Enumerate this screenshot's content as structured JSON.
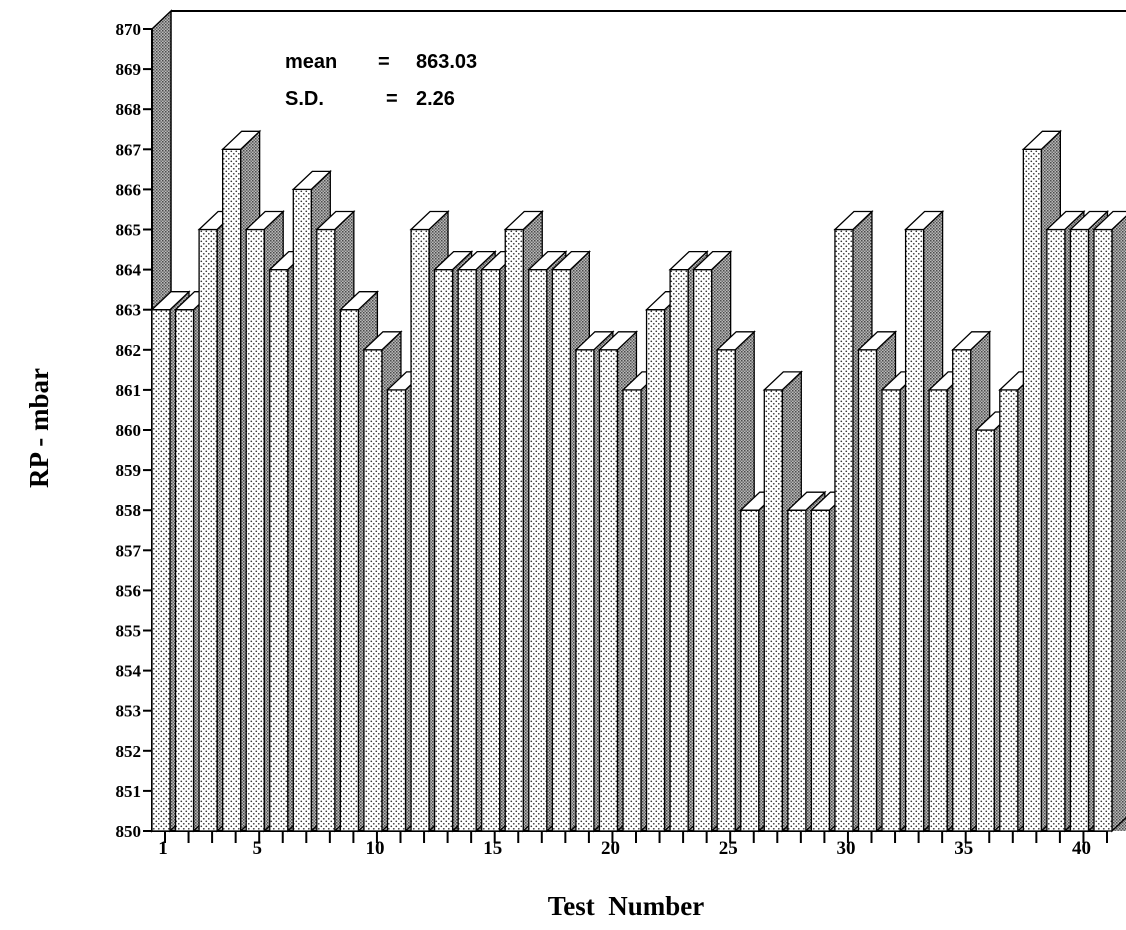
{
  "chart_data": {
    "type": "bar",
    "style": "3d",
    "title": "",
    "xlabel": "Test  Number",
    "ylabel": "RP - mbar",
    "ylim": [
      850,
      870
    ],
    "y_ticks": [
      850,
      851,
      852,
      853,
      854,
      855,
      856,
      857,
      858,
      859,
      860,
      861,
      862,
      863,
      864,
      865,
      866,
      867,
      868,
      869,
      870
    ],
    "x_tick_labels": [
      {
        "test": 1,
        "label": "1"
      },
      {
        "test": 5,
        "label": "5"
      },
      {
        "test": 10,
        "label": "10"
      },
      {
        "test": 15,
        "label": "15"
      },
      {
        "test": 20,
        "label": "20"
      },
      {
        "test": 25,
        "label": "25"
      },
      {
        "test": 30,
        "label": "30"
      },
      {
        "test": 35,
        "label": "35"
      },
      {
        "test": 40,
        "label": "40"
      }
    ],
    "grid": false,
    "legend": "none",
    "x": [
      1,
      2,
      3,
      4,
      5,
      6,
      7,
      8,
      9,
      10,
      11,
      12,
      13,
      14,
      15,
      16,
      17,
      18,
      19,
      20,
      21,
      22,
      23,
      24,
      25,
      26,
      27,
      28,
      29,
      30,
      31,
      32,
      33,
      34,
      35,
      36,
      37,
      38,
      39,
      40,
      41
    ],
    "values": [
      863,
      863,
      865,
      867,
      865,
      864,
      866,
      865,
      863,
      862,
      861,
      865,
      864,
      864,
      864,
      865,
      864,
      864,
      862,
      862,
      861,
      863,
      864,
      864,
      862,
      858,
      861,
      858,
      858,
      865,
      862,
      861,
      865,
      861,
      862,
      860,
      861,
      867,
      865,
      865,
      865
    ],
    "stats": {
      "mean_label": "mean",
      "mean_eq": "=",
      "mean_value": "863.03",
      "sd_label": "S.D.",
      "sd_eq": "=",
      "sd_value": "2.26"
    }
  }
}
